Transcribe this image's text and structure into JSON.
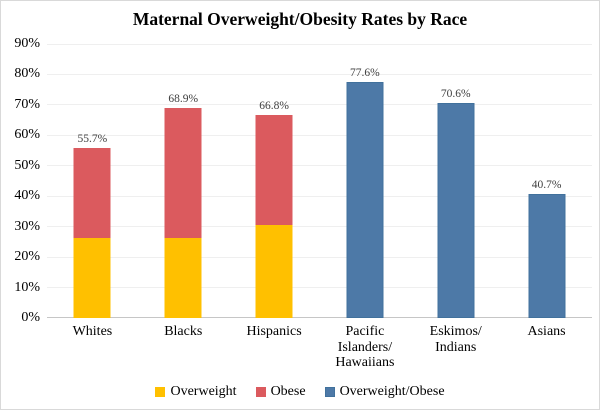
{
  "title": "Maternal Overweight/Obesity Rates by Race",
  "colors": {
    "overweight": "#FFC000",
    "obese": "#DB5A5E",
    "overweight_obese": "#4D79A7",
    "overweight_obese_border": "#41719C",
    "gridline": "#EFEFEF",
    "axis_line": "#C6C6C6",
    "data_label": "#3F3F3F"
  },
  "chart_data": {
    "type": "bar",
    "stacked": true,
    "title": "Maternal Overweight/Obesity Rates by Race",
    "xlabel": "",
    "ylabel": "",
    "ylim": [
      0,
      90
    ],
    "ytick_step": 10,
    "ytick_labels": [
      "0%",
      "10%",
      "20%",
      "30%",
      "40%",
      "50%",
      "60%",
      "70%",
      "80%",
      "90%"
    ],
    "grid": true,
    "legend_position": "bottom",
    "categories": [
      "Whites",
      "Blacks",
      "Hispanics",
      "Pacific\nIslanders/\nHawaiians",
      "Eskimos/\nIndians",
      "Asians"
    ],
    "series": [
      {
        "name": "Overweight",
        "key": "overweight",
        "color": "#FFC000",
        "values": [
          26.2,
          26.2,
          30.5,
          null,
          null,
          null
        ]
      },
      {
        "name": "Obese",
        "key": "obese",
        "color": "#DB5A5E",
        "values": [
          29.5,
          42.7,
          36.3,
          null,
          null,
          null
        ]
      },
      {
        "name": "Overweight/Obese",
        "key": "overweight-obese",
        "color": "#4D79A7",
        "border": "#41719C",
        "values": [
          null,
          null,
          null,
          77.6,
          70.6,
          40.7
        ]
      }
    ],
    "totals": [
      55.7,
      68.9,
      66.8,
      77.6,
      70.6,
      40.7
    ],
    "totals_labels": [
      "55.7%",
      "68.9%",
      "66.8%",
      "77.6%",
      "70.6%",
      "40.7%"
    ]
  }
}
